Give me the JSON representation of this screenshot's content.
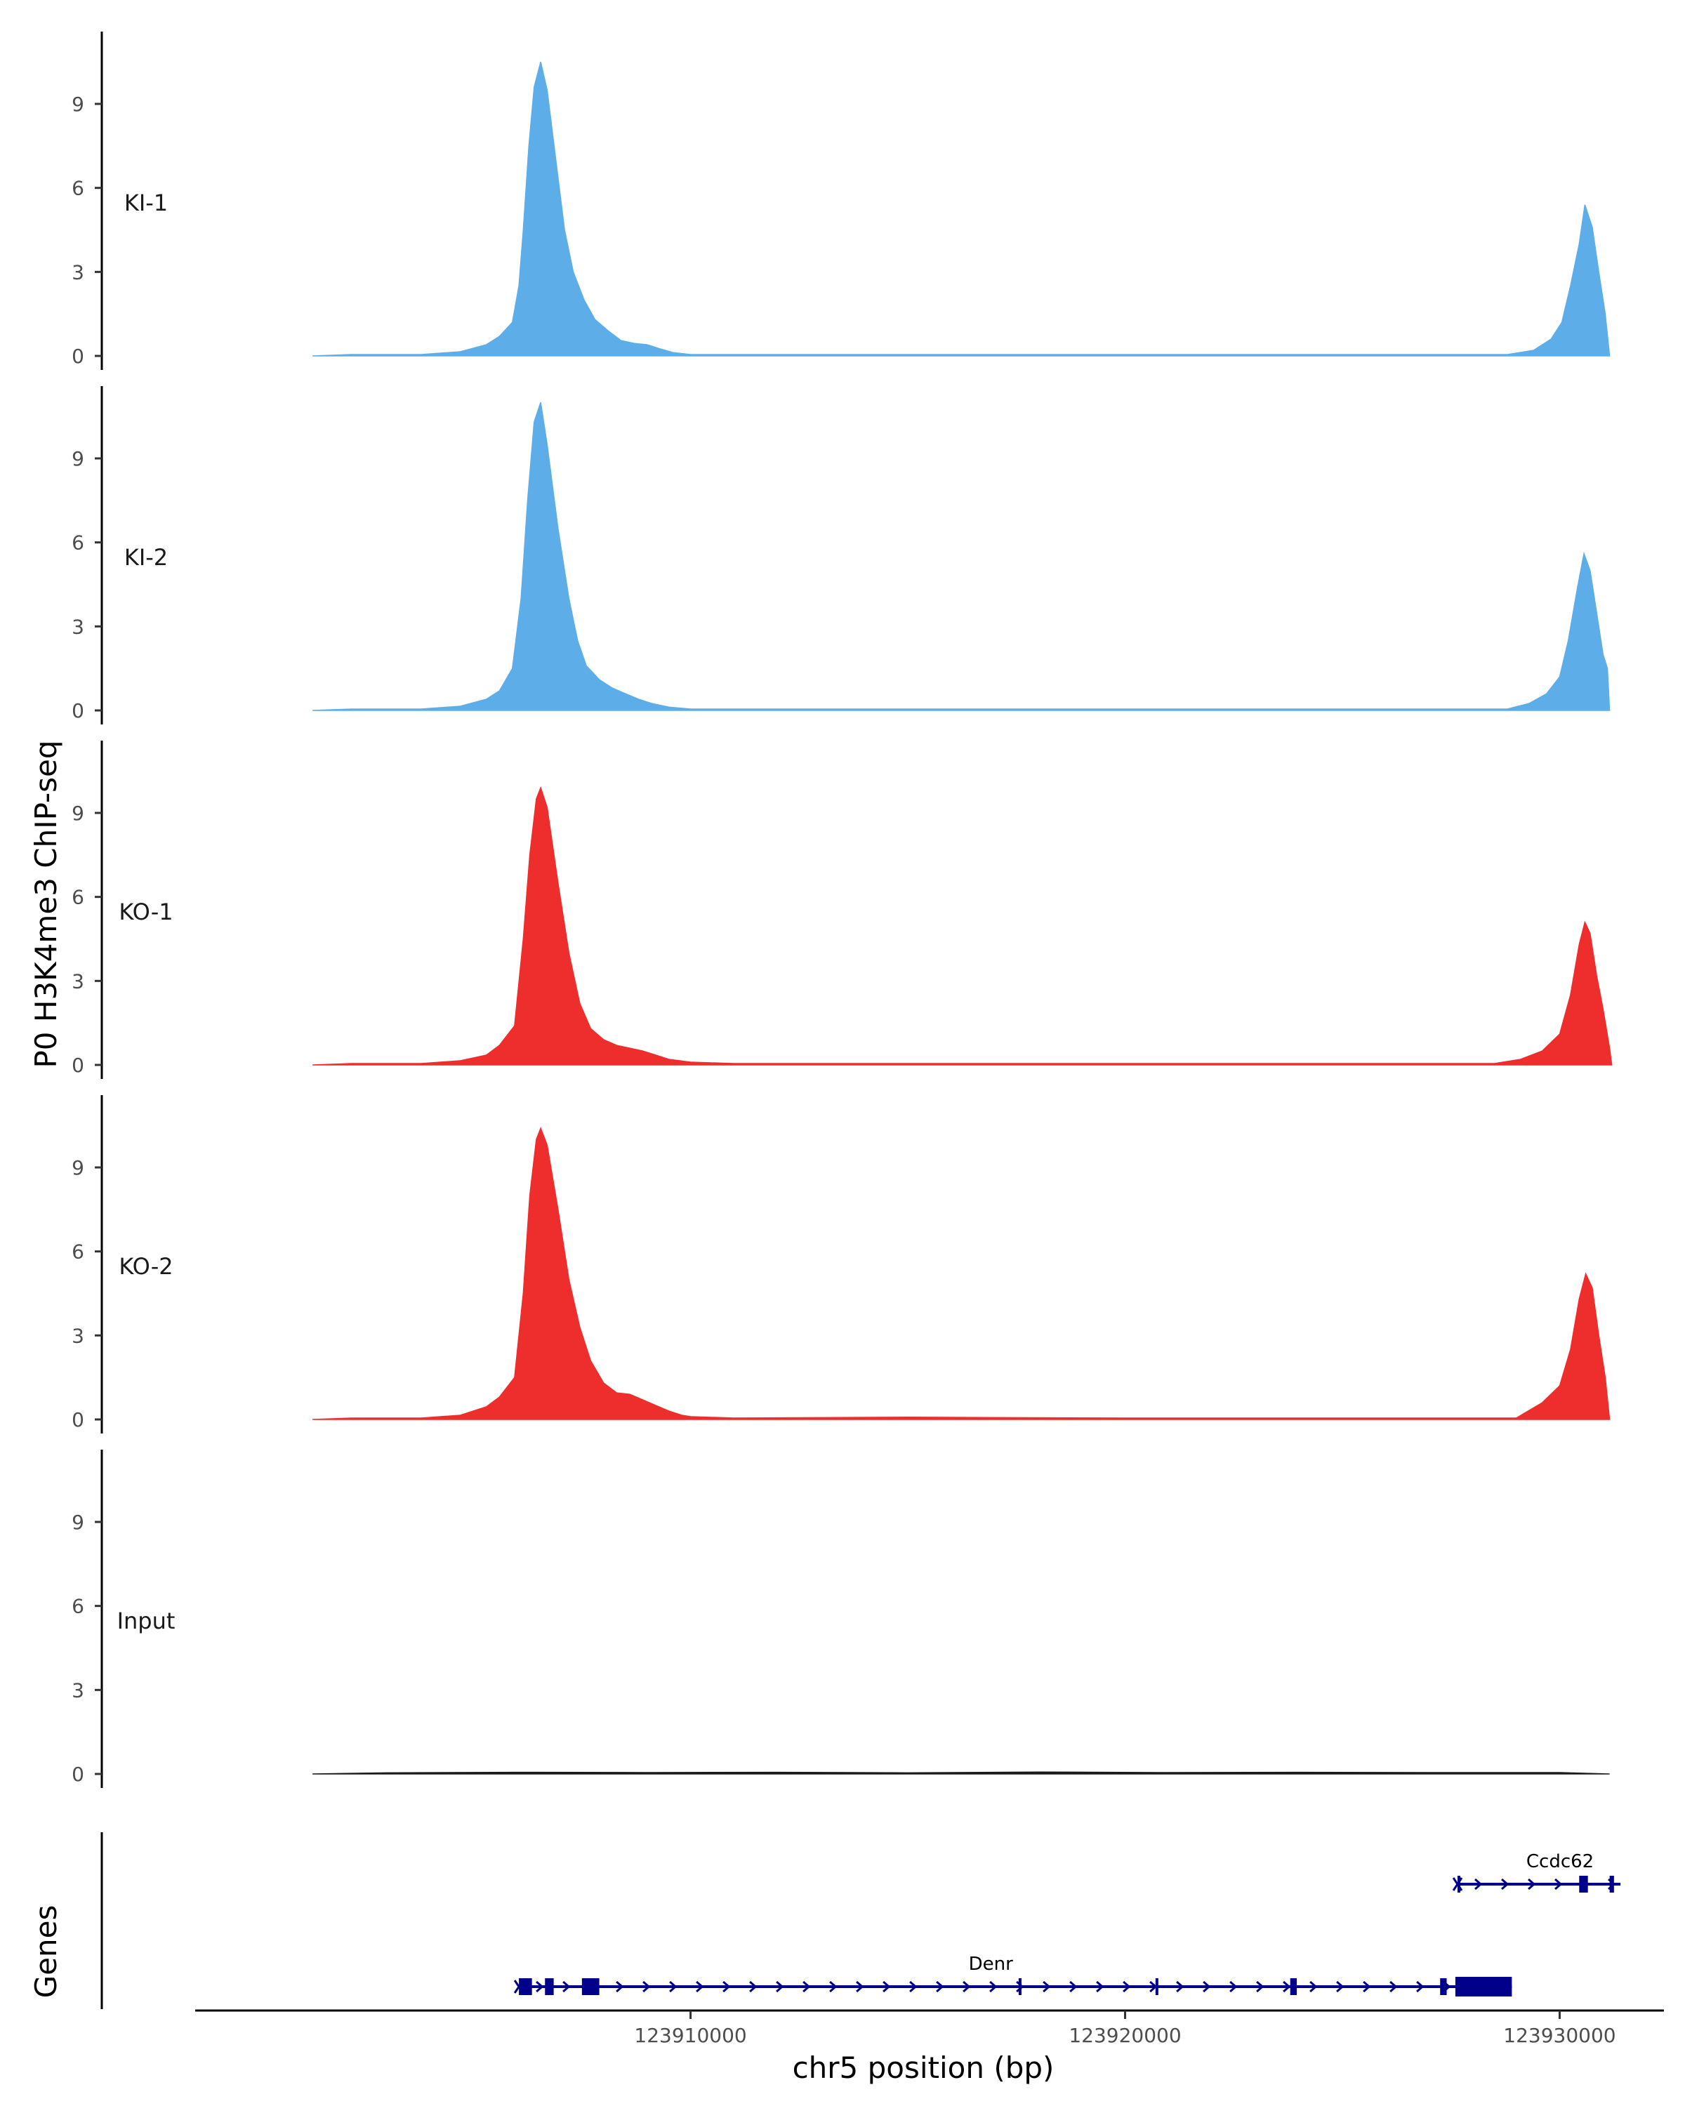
{
  "chart_data": {
    "type": "area",
    "ylabel": "P0 H3K4me3 ChIP-seq",
    "xlabel": "chr5 position (bp)",
    "genes_label": "Genes",
    "xlim": [
      123898600,
      123932400
    ],
    "ylim": [
      0,
      11.5
    ],
    "y_ticks": [
      0,
      3,
      6,
      9
    ],
    "x_ticks": [
      123910000,
      123920000,
      123930000
    ],
    "x_tick_labels": [
      "123910000",
      "123920000",
      "123930000"
    ],
    "tracks": [
      {
        "name": "KI-1",
        "color": "#5DADE8",
        "points": [
          [
            123901300,
            0
          ],
          [
            123902200,
            0.05
          ],
          [
            123903800,
            0.05
          ],
          [
            123904700,
            0.15
          ],
          [
            123905300,
            0.4
          ],
          [
            123905600,
            0.7
          ],
          [
            123905900,
            1.2
          ],
          [
            123906050,
            2.5
          ],
          [
            123906150,
            4.5
          ],
          [
            123906280,
            7.5
          ],
          [
            123906400,
            9.6
          ],
          [
            123906550,
            10.5
          ],
          [
            123906700,
            9.5
          ],
          [
            123906900,
            7
          ],
          [
            123907100,
            4.5
          ],
          [
            123907300,
            3
          ],
          [
            123907550,
            2
          ],
          [
            123907800,
            1.3
          ],
          [
            123908100,
            0.9
          ],
          [
            123908400,
            0.55
          ],
          [
            123908700,
            0.45
          ],
          [
            123909000,
            0.4
          ],
          [
            123909300,
            0.25
          ],
          [
            123909600,
            0.12
          ],
          [
            123910000,
            0.05
          ],
          [
            123912000,
            0.05
          ],
          [
            123916000,
            0.05
          ],
          [
            123920000,
            0.05
          ],
          [
            123925000,
            0.05
          ],
          [
            123928800,
            0.05
          ],
          [
            123929400,
            0.2
          ],
          [
            123929800,
            0.6
          ],
          [
            123930050,
            1.2
          ],
          [
            123930250,
            2.5
          ],
          [
            123930450,
            4
          ],
          [
            123930580,
            5.4
          ],
          [
            123930750,
            4.6
          ],
          [
            123930900,
            3
          ],
          [
            123931050,
            1.5
          ],
          [
            123931150,
            0
          ]
        ]
      },
      {
        "name": "KI-2",
        "color": "#5DADE8",
        "points": [
          [
            123901300,
            0
          ],
          [
            123902200,
            0.05
          ],
          [
            123903800,
            0.05
          ],
          [
            123904700,
            0.15
          ],
          [
            123905300,
            0.4
          ],
          [
            123905600,
            0.7
          ],
          [
            123905900,
            1.5
          ],
          [
            123906100,
            4
          ],
          [
            123906250,
            7.5
          ],
          [
            123906400,
            10.3
          ],
          [
            123906550,
            11.0
          ],
          [
            123906700,
            9.5
          ],
          [
            123906950,
            6.5
          ],
          [
            123907200,
            4
          ],
          [
            123907400,
            2.5
          ],
          [
            123907600,
            1.6
          ],
          [
            123907900,
            1.1
          ],
          [
            123908200,
            0.8
          ],
          [
            123908500,
            0.6
          ],
          [
            123908800,
            0.4
          ],
          [
            123909100,
            0.25
          ],
          [
            123909500,
            0.12
          ],
          [
            123910000,
            0.05
          ],
          [
            123914000,
            0.05
          ],
          [
            123918000,
            0.05
          ],
          [
            123922000,
            0.05
          ],
          [
            123926000,
            0.05
          ],
          [
            123928800,
            0.05
          ],
          [
            123929300,
            0.25
          ],
          [
            123929700,
            0.6
          ],
          [
            123930000,
            1.2
          ],
          [
            123930200,
            2.5
          ],
          [
            123930400,
            4.3
          ],
          [
            123930560,
            5.6
          ],
          [
            123930700,
            5
          ],
          [
            123930850,
            3.5
          ],
          [
            123931000,
            2
          ],
          [
            123931100,
            1.5
          ],
          [
            123931150,
            0
          ]
        ]
      },
      {
        "name": "KO-1",
        "color": "#EE2D2D",
        "points": [
          [
            123901300,
            0
          ],
          [
            123902200,
            0.05
          ],
          [
            123903800,
            0.05
          ],
          [
            123904700,
            0.15
          ],
          [
            123905300,
            0.35
          ],
          [
            123905600,
            0.7
          ],
          [
            123905950,
            1.4
          ],
          [
            123906150,
            4.5
          ],
          [
            123906300,
            7.5
          ],
          [
            123906450,
            9.5
          ],
          [
            123906550,
            9.9
          ],
          [
            123906700,
            9.2
          ],
          [
            123906950,
            6.5
          ],
          [
            123907200,
            4
          ],
          [
            123907450,
            2.2
          ],
          [
            123907700,
            1.3
          ],
          [
            123908000,
            0.9
          ],
          [
            123908300,
            0.7
          ],
          [
            123908600,
            0.6
          ],
          [
            123908900,
            0.5
          ],
          [
            123909200,
            0.35
          ],
          [
            123909500,
            0.2
          ],
          [
            123910000,
            0.1
          ],
          [
            123911000,
            0.05
          ],
          [
            123915000,
            0.05
          ],
          [
            123920000,
            0.05
          ],
          [
            123925000,
            0.05
          ],
          [
            123928500,
            0.05
          ],
          [
            123929100,
            0.2
          ],
          [
            123929600,
            0.5
          ],
          [
            123930000,
            1.1
          ],
          [
            123930250,
            2.5
          ],
          [
            123930450,
            4.3
          ],
          [
            123930580,
            5.1
          ],
          [
            123930700,
            4.7
          ],
          [
            123930850,
            3.2
          ],
          [
            123931000,
            2
          ],
          [
            123931150,
            0.6
          ],
          [
            123931200,
            0
          ]
        ]
      },
      {
        "name": "KO-2",
        "color": "#EE2D2D",
        "points": [
          [
            123901300,
            0
          ],
          [
            123902200,
            0.05
          ],
          [
            123903800,
            0.05
          ],
          [
            123904700,
            0.15
          ],
          [
            123905300,
            0.45
          ],
          [
            123905600,
            0.8
          ],
          [
            123905950,
            1.5
          ],
          [
            123906150,
            4.5
          ],
          [
            123906300,
            8
          ],
          [
            123906450,
            10
          ],
          [
            123906550,
            10.4
          ],
          [
            123906700,
            9.8
          ],
          [
            123906950,
            7.5
          ],
          [
            123907200,
            5
          ],
          [
            123907450,
            3.3
          ],
          [
            123907700,
            2.1
          ],
          [
            123908000,
            1.3
          ],
          [
            123908300,
            0.95
          ],
          [
            123908600,
            0.9
          ],
          [
            123908900,
            0.7
          ],
          [
            123909200,
            0.5
          ],
          [
            123909500,
            0.3
          ],
          [
            123909800,
            0.15
          ],
          [
            123910000,
            0.1
          ],
          [
            123911000,
            0.05
          ],
          [
            123915000,
            0.08
          ],
          [
            123920000,
            0.05
          ],
          [
            123925000,
            0.05
          ],
          [
            123929000,
            0.05
          ],
          [
            123929600,
            0.6
          ],
          [
            123930000,
            1.2
          ],
          [
            123930250,
            2.5
          ],
          [
            123930450,
            4.3
          ],
          [
            123930600,
            5.2
          ],
          [
            123930750,
            4.7
          ],
          [
            123930900,
            3
          ],
          [
            123931050,
            1.5
          ],
          [
            123931150,
            0
          ]
        ]
      },
      {
        "name": "Input",
        "color": "#1a1a1a",
        "points": [
          [
            123901300,
            0
          ],
          [
            123903000,
            0.04
          ],
          [
            123906000,
            0.06
          ],
          [
            123909000,
            0.05
          ],
          [
            123912000,
            0.06
          ],
          [
            123915000,
            0.04
          ],
          [
            123918000,
            0.07
          ],
          [
            123921000,
            0.05
          ],
          [
            123924000,
            0.06
          ],
          [
            123927000,
            0.05
          ],
          [
            123930000,
            0.05
          ],
          [
            123931150,
            0
          ]
        ]
      }
    ],
    "genes": [
      {
        "name": "Ccdc62",
        "color": "#00008B",
        "start": 123927650,
        "end": 123931400,
        "strand": "+",
        "exons": [
          [
            123927650,
            123927700
          ],
          [
            123930450,
            123930650
          ],
          [
            123931150,
            123931250
          ]
        ]
      },
      {
        "name": "Denr",
        "color": "#00008B",
        "start": 123906050,
        "end": 123928900,
        "strand": "+",
        "exons": [
          [
            123906050,
            123906350
          ],
          [
            123906650,
            123906850
          ],
          [
            123907500,
            123907900
          ],
          [
            123917550,
            123917600
          ],
          [
            123920700,
            123920750
          ],
          [
            123923800,
            123923950
          ],
          [
            123927250,
            123927400
          ],
          [
            123927600,
            123928900
          ]
        ]
      }
    ]
  }
}
